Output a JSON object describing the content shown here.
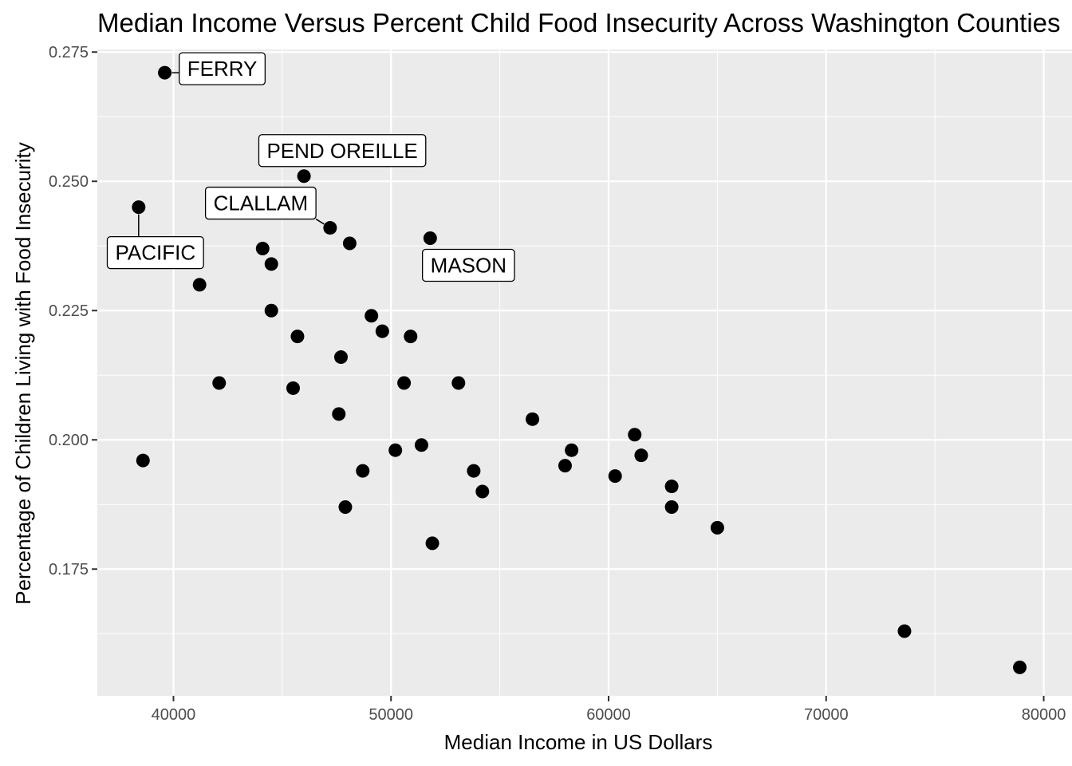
{
  "chart_data": {
    "type": "scatter",
    "title": "Median Income Versus Percent Child Food Insecurity Across Washington Counties",
    "xlabel": "Median Income in US Dollars",
    "ylabel": "Percentage of Children Living with Food Insecurity",
    "xlim": [
      36500,
      81300
    ],
    "ylim": [
      0.1505,
      0.2755
    ],
    "x_ticks": [
      40000,
      50000,
      60000,
      70000,
      80000
    ],
    "x_tick_labels": [
      "40000",
      "50000",
      "60000",
      "70000",
      "80000"
    ],
    "y_ticks": [
      0.175,
      0.2,
      0.225,
      0.25,
      0.275
    ],
    "y_tick_labels": [
      "0.175",
      "0.200",
      "0.225",
      "0.250",
      "0.275"
    ],
    "grid": true,
    "panel_background": "#ebebeb",
    "point_color": "#000000",
    "points": [
      {
        "x": 39600,
        "y": 0.271
      },
      {
        "x": 38400,
        "y": 0.245
      },
      {
        "x": 46000,
        "y": 0.251
      },
      {
        "x": 47200,
        "y": 0.241
      },
      {
        "x": 51800,
        "y": 0.239
      },
      {
        "x": 48100,
        "y": 0.238
      },
      {
        "x": 44100,
        "y": 0.237
      },
      {
        "x": 44500,
        "y": 0.234
      },
      {
        "x": 41200,
        "y": 0.23
      },
      {
        "x": 44500,
        "y": 0.225
      },
      {
        "x": 49100,
        "y": 0.224
      },
      {
        "x": 49600,
        "y": 0.221
      },
      {
        "x": 45700,
        "y": 0.22
      },
      {
        "x": 50900,
        "y": 0.22
      },
      {
        "x": 47700,
        "y": 0.216
      },
      {
        "x": 42100,
        "y": 0.211
      },
      {
        "x": 50600,
        "y": 0.211
      },
      {
        "x": 53100,
        "y": 0.211
      },
      {
        "x": 45500,
        "y": 0.21
      },
      {
        "x": 47600,
        "y": 0.205
      },
      {
        "x": 56500,
        "y": 0.204
      },
      {
        "x": 61200,
        "y": 0.201
      },
      {
        "x": 51400,
        "y": 0.199
      },
      {
        "x": 50200,
        "y": 0.198
      },
      {
        "x": 58300,
        "y": 0.198
      },
      {
        "x": 61500,
        "y": 0.197
      },
      {
        "x": 38600,
        "y": 0.196
      },
      {
        "x": 58000,
        "y": 0.195
      },
      {
        "x": 48700,
        "y": 0.194
      },
      {
        "x": 53800,
        "y": 0.194
      },
      {
        "x": 60300,
        "y": 0.193
      },
      {
        "x": 62900,
        "y": 0.191
      },
      {
        "x": 54200,
        "y": 0.19
      },
      {
        "x": 47900,
        "y": 0.187
      },
      {
        "x": 62900,
        "y": 0.187
      },
      {
        "x": 65000,
        "y": 0.183
      },
      {
        "x": 51900,
        "y": 0.18
      },
      {
        "x": 73600,
        "y": 0.163
      },
      {
        "x": 78900,
        "y": 0.156
      }
    ],
    "annotations": [
      {
        "text": "FERRY",
        "x": 39600,
        "y": 0.271
      },
      {
        "text": "PEND OREILLE",
        "x": 46000,
        "y": 0.251
      },
      {
        "text": "CLALLAM",
        "x": 47200,
        "y": 0.241
      },
      {
        "text": "PACIFIC",
        "x": 38400,
        "y": 0.245
      },
      {
        "text": "MASON",
        "x": 51800,
        "y": 0.239
      }
    ]
  }
}
